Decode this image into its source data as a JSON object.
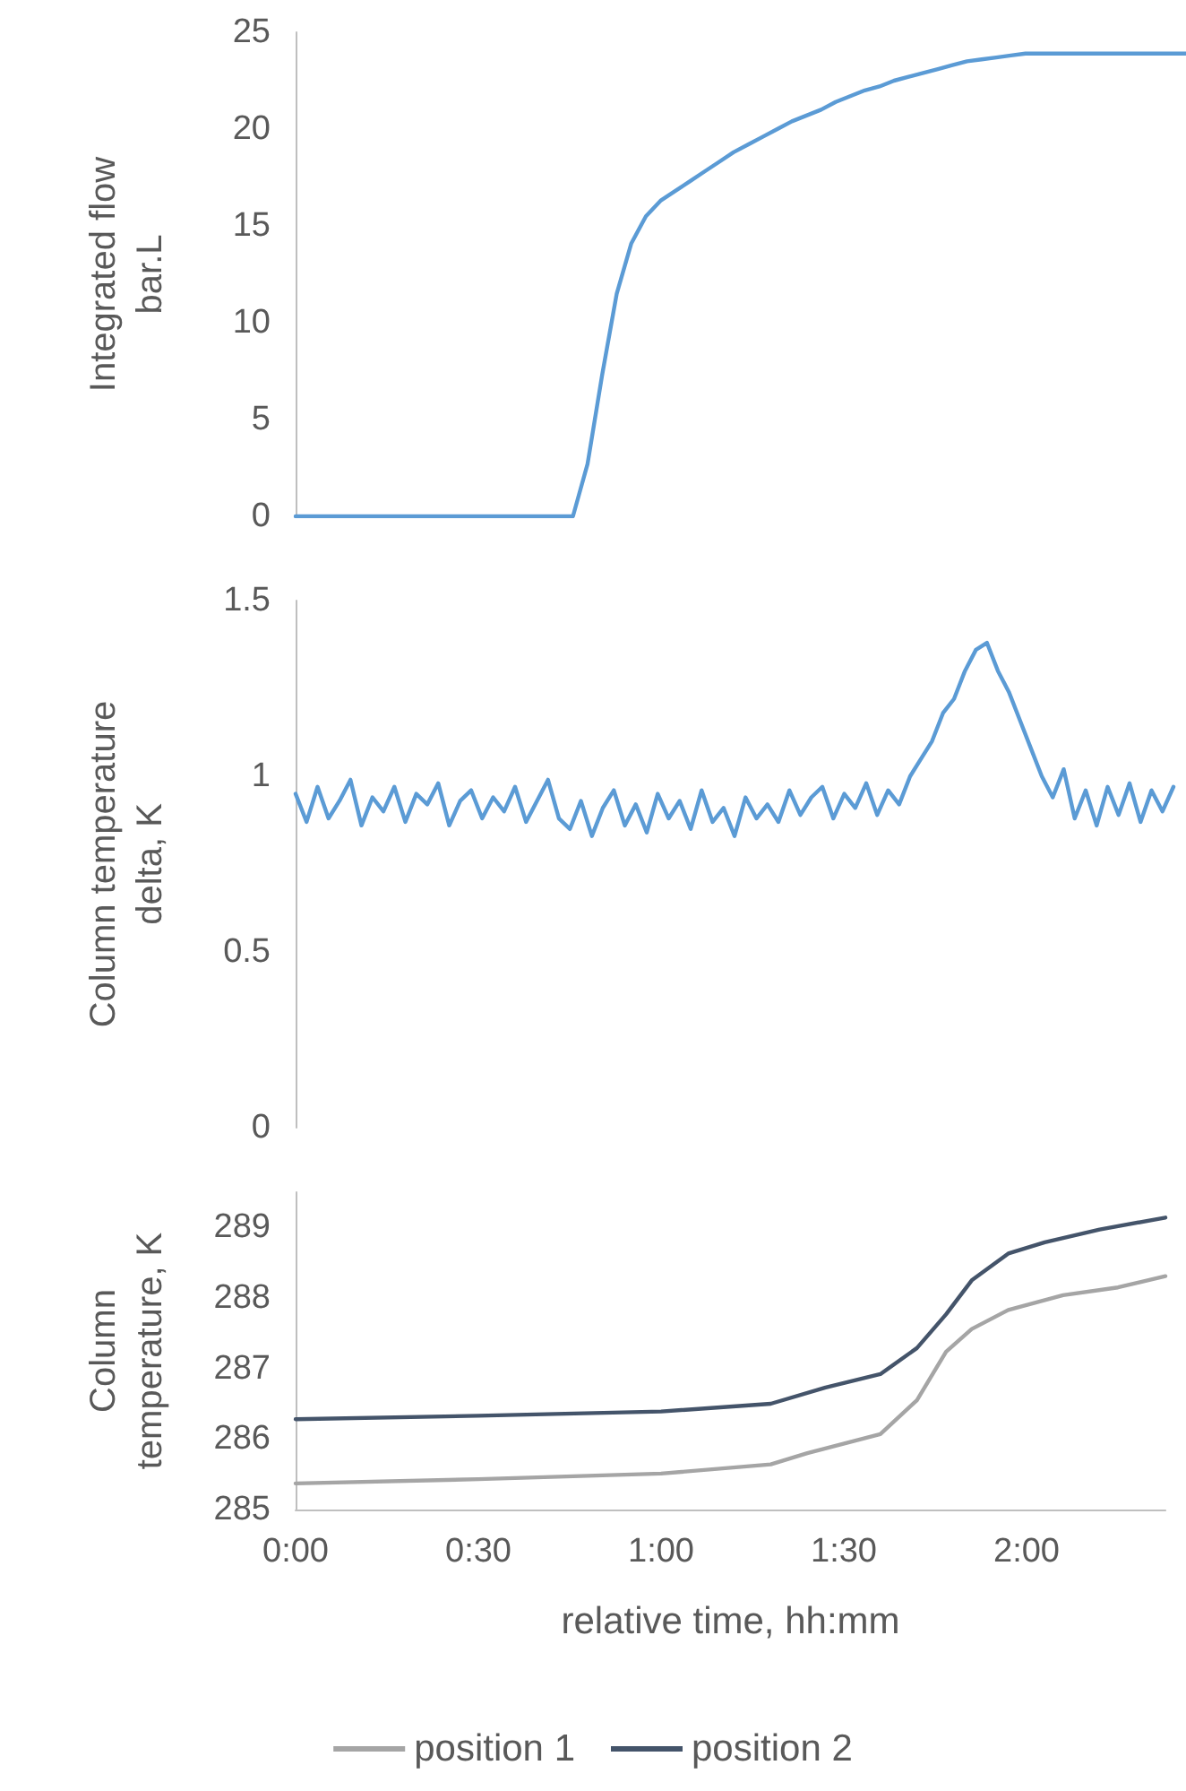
{
  "chart_data": [
    {
      "type": "line",
      "ylabel": "Integrated flow\nbar.L",
      "ylim": [
        0,
        25
      ],
      "yticks": [
        0,
        5,
        10,
        15,
        20,
        25
      ],
      "tick_labels": "y",
      "grid": false,
      "marker": "none",
      "line_style": "solid",
      "color": "#5b9bd5",
      "categories": [
        null,
        null,
        null,
        null,
        null,
        null,
        null,
        null,
        null,
        null,
        null,
        null,
        null,
        null,
        null,
        null,
        null,
        null,
        null,
        null,
        null,
        null,
        null,
        null,
        null,
        null,
        null,
        null,
        null,
        null,
        null,
        null,
        null,
        null,
        null,
        null,
        null,
        null,
        null,
        null,
        null,
        null,
        null,
        null,
        null,
        null,
        null,
        null,
        null,
        null,
        null,
        null,
        null,
        null,
        null,
        null,
        null,
        null,
        null,
        null,
        null,
        null
      ],
      "values": [
        0,
        0,
        0,
        0,
        0,
        0,
        0,
        0,
        0,
        0,
        0,
        0,
        0,
        0,
        0,
        0,
        0,
        0,
        0,
        0,
        2.7,
        7.3,
        11.5,
        14.1,
        15.5,
        16.3,
        16.8,
        17.3,
        17.8,
        18.3,
        18.8,
        19.2,
        19.6,
        20.0,
        20.4,
        20.7,
        21.0,
        21.4,
        21.7,
        22.0,
        22.2,
        22.5,
        22.7,
        22.9,
        23.1,
        23.3,
        23.5,
        23.6,
        23.7,
        23.8,
        23.9,
        23.9,
        23.9,
        23.9,
        23.9,
        23.9,
        23.9,
        23.9,
        23.9,
        23.9,
        23.9,
        23.9
      ]
    },
    {
      "type": "line",
      "ylabel": "Column temperature\ndelta, K",
      "ylim": [
        0,
        1.5
      ],
      "yticks": [
        0,
        0.5,
        1,
        1.5
      ],
      "tick_labels": "y",
      "grid": false,
      "marker": "none",
      "line_style": "solid",
      "color": "#5b9bd5",
      "categories": [
        null,
        null,
        null,
        null,
        null,
        null,
        null,
        null,
        null,
        null,
        null,
        null,
        null,
        null,
        null,
        null,
        null,
        null,
        null,
        null,
        null,
        null,
        null,
        null,
        null,
        null,
        null,
        null,
        null,
        null,
        null,
        null,
        null,
        null,
        null,
        null,
        null,
        null,
        null,
        null,
        null,
        null,
        null,
        null,
        null,
        null,
        null,
        null,
        null,
        null,
        null,
        null,
        null,
        null,
        null,
        null,
        null,
        null,
        null,
        null,
        null,
        null,
        null,
        null,
        null,
        null,
        null,
        null,
        null,
        null,
        null,
        null,
        null,
        null,
        null,
        null,
        null,
        null,
        null,
        null,
        null
      ],
      "values": [
        0.95,
        0.87,
        0.97,
        0.88,
        0.93,
        0.99,
        0.86,
        0.94,
        0.9,
        0.97,
        0.87,
        0.95,
        0.92,
        0.98,
        0.86,
        0.93,
        0.96,
        0.88,
        0.94,
        0.9,
        0.97,
        0.87,
        0.93,
        0.99,
        0.88,
        0.85,
        0.93,
        0.83,
        0.91,
        0.96,
        0.86,
        0.92,
        0.84,
        0.95,
        0.88,
        0.93,
        0.85,
        0.96,
        0.87,
        0.91,
        0.83,
        0.94,
        0.88,
        0.92,
        0.87,
        0.96,
        0.89,
        0.94,
        0.97,
        0.88,
        0.95,
        0.91,
        0.98,
        0.89,
        0.96,
        0.92,
        1.0,
        1.05,
        1.1,
        1.18,
        1.22,
        1.3,
        1.36,
        1.38,
        1.3,
        1.24,
        1.16,
        1.08,
        1.0,
        0.94,
        1.02,
        0.88,
        0.96,
        0.86,
        0.97,
        0.89,
        0.98,
        0.87,
        0.96,
        0.9,
        0.97
      ]
    },
    {
      "type": "line",
      "ylabel": "Column\ntemperature, K",
      "xlabel": "relative time, hh:mm",
      "xlim": [
        0,
        2.38
      ],
      "xticks": [
        {
          "value": 0,
          "label": "0:00"
        },
        {
          "value": 0.5,
          "label": "0:30"
        },
        {
          "value": 1,
          "label": "1:00"
        },
        {
          "value": 1.5,
          "label": "1:30"
        },
        {
          "value": 2,
          "label": "2:00"
        }
      ],
      "ylim": [
        285,
        289.5
      ],
      "yticks": [
        285,
        286,
        287,
        288,
        289
      ],
      "grid": false,
      "marker": "none",
      "line_style": "solid",
      "legend": "bottom",
      "series": [
        {
          "name": "position 1",
          "color": "#a5a5a5",
          "x": [
            0,
            0.5,
            1.0,
            1.3,
            1.4,
            1.6,
            1.7,
            1.78,
            1.85,
            1.95,
            2.1,
            2.25,
            2.38
          ],
          "values": [
            285.37,
            285.43,
            285.51,
            285.64,
            285.8,
            286.07,
            286.55,
            287.24,
            287.56,
            287.83,
            288.04,
            288.15,
            288.31
          ]
        },
        {
          "name": "position 2",
          "color": "#44546a",
          "x": [
            0,
            0.5,
            1.0,
            1.3,
            1.45,
            1.6,
            1.7,
            1.78,
            1.85,
            1.95,
            2.05,
            2.2,
            2.38
          ],
          "values": [
            286.28,
            286.33,
            286.39,
            286.5,
            286.73,
            286.92,
            287.29,
            287.77,
            288.25,
            288.63,
            288.79,
            288.97,
            289.14
          ]
        }
      ]
    }
  ]
}
